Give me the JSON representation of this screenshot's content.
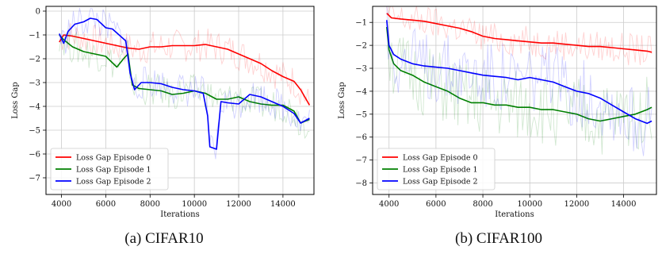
{
  "chart_data": [
    {
      "type": "line",
      "caption": "(a) CIFAR10",
      "xlabel": "Iterations",
      "ylabel": "Loss Gap",
      "xlim": [
        3300,
        15400
      ],
      "ylim": [
        -7.7,
        0.2
      ],
      "xticks": [
        4000,
        6000,
        8000,
        10000,
        12000,
        14000
      ],
      "yticks": [
        0,
        -1,
        -2,
        -3,
        -4,
        -5,
        -6,
        -7
      ],
      "grid": true,
      "legend_position": "bottom-left",
      "series": [
        {
          "name": "Loss Gap Episode 0",
          "color": "#ff0000",
          "x": [
            3900,
            4100,
            4500,
            5000,
            5500,
            6000,
            6500,
            7000,
            7500,
            8000,
            8500,
            9000,
            9500,
            10000,
            10500,
            11000,
            11500,
            12000,
            12500,
            13000,
            13500,
            14000,
            14500,
            14800,
            15200
          ],
          "y": [
            -1.3,
            -1.0,
            -1.05,
            -1.15,
            -1.25,
            -1.35,
            -1.45,
            -1.55,
            -1.6,
            -1.5,
            -1.5,
            -1.45,
            -1.45,
            -1.45,
            -1.4,
            -1.5,
            -1.6,
            -1.8,
            -2.0,
            -2.2,
            -2.5,
            -2.75,
            -2.95,
            -3.3,
            -3.95
          ]
        },
        {
          "name": "Loss Gap Episode 1",
          "color": "#008000",
          "x": [
            3900,
            4100,
            4500,
            5000,
            5500,
            6000,
            6500,
            6800,
            7000,
            7200,
            7500,
            8000,
            8500,
            9000,
            9500,
            10000,
            10500,
            11000,
            11500,
            12000,
            12500,
            13000,
            13500,
            14000,
            14500,
            14800,
            15200
          ],
          "y": [
            -1.0,
            -1.2,
            -1.5,
            -1.7,
            -1.8,
            -1.9,
            -2.35,
            -2.0,
            -1.8,
            -3.1,
            -3.25,
            -3.3,
            -3.35,
            -3.5,
            -3.45,
            -3.35,
            -3.45,
            -3.7,
            -3.7,
            -3.6,
            -3.8,
            -3.9,
            -3.95,
            -3.95,
            -4.2,
            -4.7,
            -4.55
          ]
        },
        {
          "name": "Loss Gap Episode 2",
          "color": "#0000ff",
          "x": [
            3900,
            4100,
            4300,
            4600,
            5000,
            5300,
            5600,
            6000,
            6300,
            6600,
            6900,
            7100,
            7300,
            7600,
            8000,
            8500,
            9000,
            9500,
            10000,
            10400,
            10600,
            10700,
            11000,
            11200,
            11500,
            12000,
            12500,
            13000,
            13500,
            14000,
            14500,
            14800,
            15200
          ],
          "y": [
            -0.95,
            -1.35,
            -0.85,
            -0.55,
            -0.45,
            -0.3,
            -0.35,
            -0.7,
            -0.75,
            -1.0,
            -1.25,
            -2.6,
            -3.3,
            -3.0,
            -3.0,
            -3.05,
            -3.2,
            -3.3,
            -3.35,
            -3.45,
            -4.4,
            -5.7,
            -5.8,
            -3.8,
            -3.85,
            -3.9,
            -3.5,
            -3.6,
            -3.8,
            -4.0,
            -4.3,
            -4.7,
            -4.5
          ]
        }
      ]
    },
    {
      "type": "line",
      "caption": "(b) CIFAR100",
      "xlabel": "Iterations",
      "ylabel": "Loss Gap",
      "xlim": [
        3300,
        15400
      ],
      "ylim": [
        -8.5,
        -0.3
      ],
      "xticks": [
        4000,
        6000,
        8000,
        10000,
        12000,
        14000
      ],
      "yticks": [
        -1,
        -2,
        -3,
        -4,
        -5,
        -6,
        -7,
        -8
      ],
      "grid": true,
      "legend_position": "bottom-left",
      "series": [
        {
          "name": "Loss Gap Episode 0",
          "color": "#ff0000",
          "x": [
            3900,
            4100,
            4500,
            5000,
            5500,
            6000,
            6500,
            7000,
            7500,
            8000,
            8500,
            9000,
            9500,
            10000,
            10500,
            11000,
            11500,
            12000,
            12500,
            13000,
            13500,
            14000,
            14500,
            15000,
            15200
          ],
          "y": [
            -0.6,
            -0.8,
            -0.85,
            -0.9,
            -0.95,
            -1.05,
            -1.15,
            -1.25,
            -1.4,
            -1.6,
            -1.7,
            -1.75,
            -1.8,
            -1.85,
            -1.9,
            -1.9,
            -1.95,
            -2.0,
            -2.05,
            -2.05,
            -2.1,
            -2.15,
            -2.2,
            -2.25,
            -2.3
          ]
        },
        {
          "name": "Loss Gap Episode 1",
          "color": "#008000",
          "x": [
            3900,
            4000,
            4200,
            4500,
            5000,
            5500,
            6000,
            6500,
            7000,
            7500,
            8000,
            8500,
            9000,
            9500,
            10000,
            10500,
            11000,
            11500,
            12000,
            12500,
            13000,
            13500,
            14000,
            14500,
            15000,
            15200
          ],
          "y": [
            -1.2,
            -2.2,
            -2.8,
            -3.1,
            -3.3,
            -3.6,
            -3.8,
            -4.0,
            -4.3,
            -4.5,
            -4.5,
            -4.6,
            -4.6,
            -4.7,
            -4.7,
            -4.8,
            -4.8,
            -4.9,
            -5.0,
            -5.2,
            -5.3,
            -5.2,
            -5.1,
            -5.0,
            -4.8,
            -4.7
          ]
        },
        {
          "name": "Loss Gap Episode 2",
          "color": "#0000ff",
          "x": [
            3900,
            4000,
            4200,
            4500,
            5000,
            5500,
            6000,
            6500,
            7000,
            7500,
            8000,
            8500,
            9000,
            9500,
            10000,
            10500,
            11000,
            11500,
            12000,
            12500,
            13000,
            13500,
            14000,
            14500,
            15000,
            15200
          ],
          "y": [
            -0.9,
            -2.0,
            -2.4,
            -2.6,
            -2.8,
            -2.9,
            -2.95,
            -3.0,
            -3.1,
            -3.2,
            -3.3,
            -3.35,
            -3.4,
            -3.5,
            -3.4,
            -3.5,
            -3.6,
            -3.8,
            -4.0,
            -4.1,
            -4.3,
            -4.6,
            -4.9,
            -5.2,
            -5.4,
            -5.3
          ]
        }
      ]
    }
  ]
}
